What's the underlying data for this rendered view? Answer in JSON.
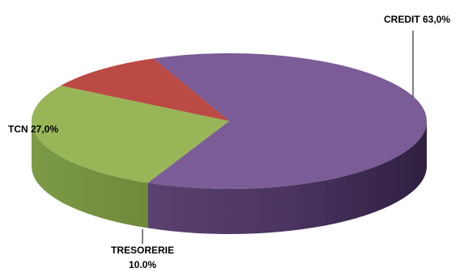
{
  "chart_data": {
    "type": "pie",
    "style": "3d",
    "slices": [
      {
        "label": "CREDIT 63,0%",
        "value": 63.0,
        "color": "#7b5c96"
      },
      {
        "label": "TCN 27,0%",
        "value": 27.0,
        "color": "#98b657"
      },
      {
        "label_lines": [
          "TRESORERIE",
          "10.0%"
        ],
        "value": 10.0,
        "color": "#bb4a45"
      }
    ],
    "legend": "none"
  }
}
